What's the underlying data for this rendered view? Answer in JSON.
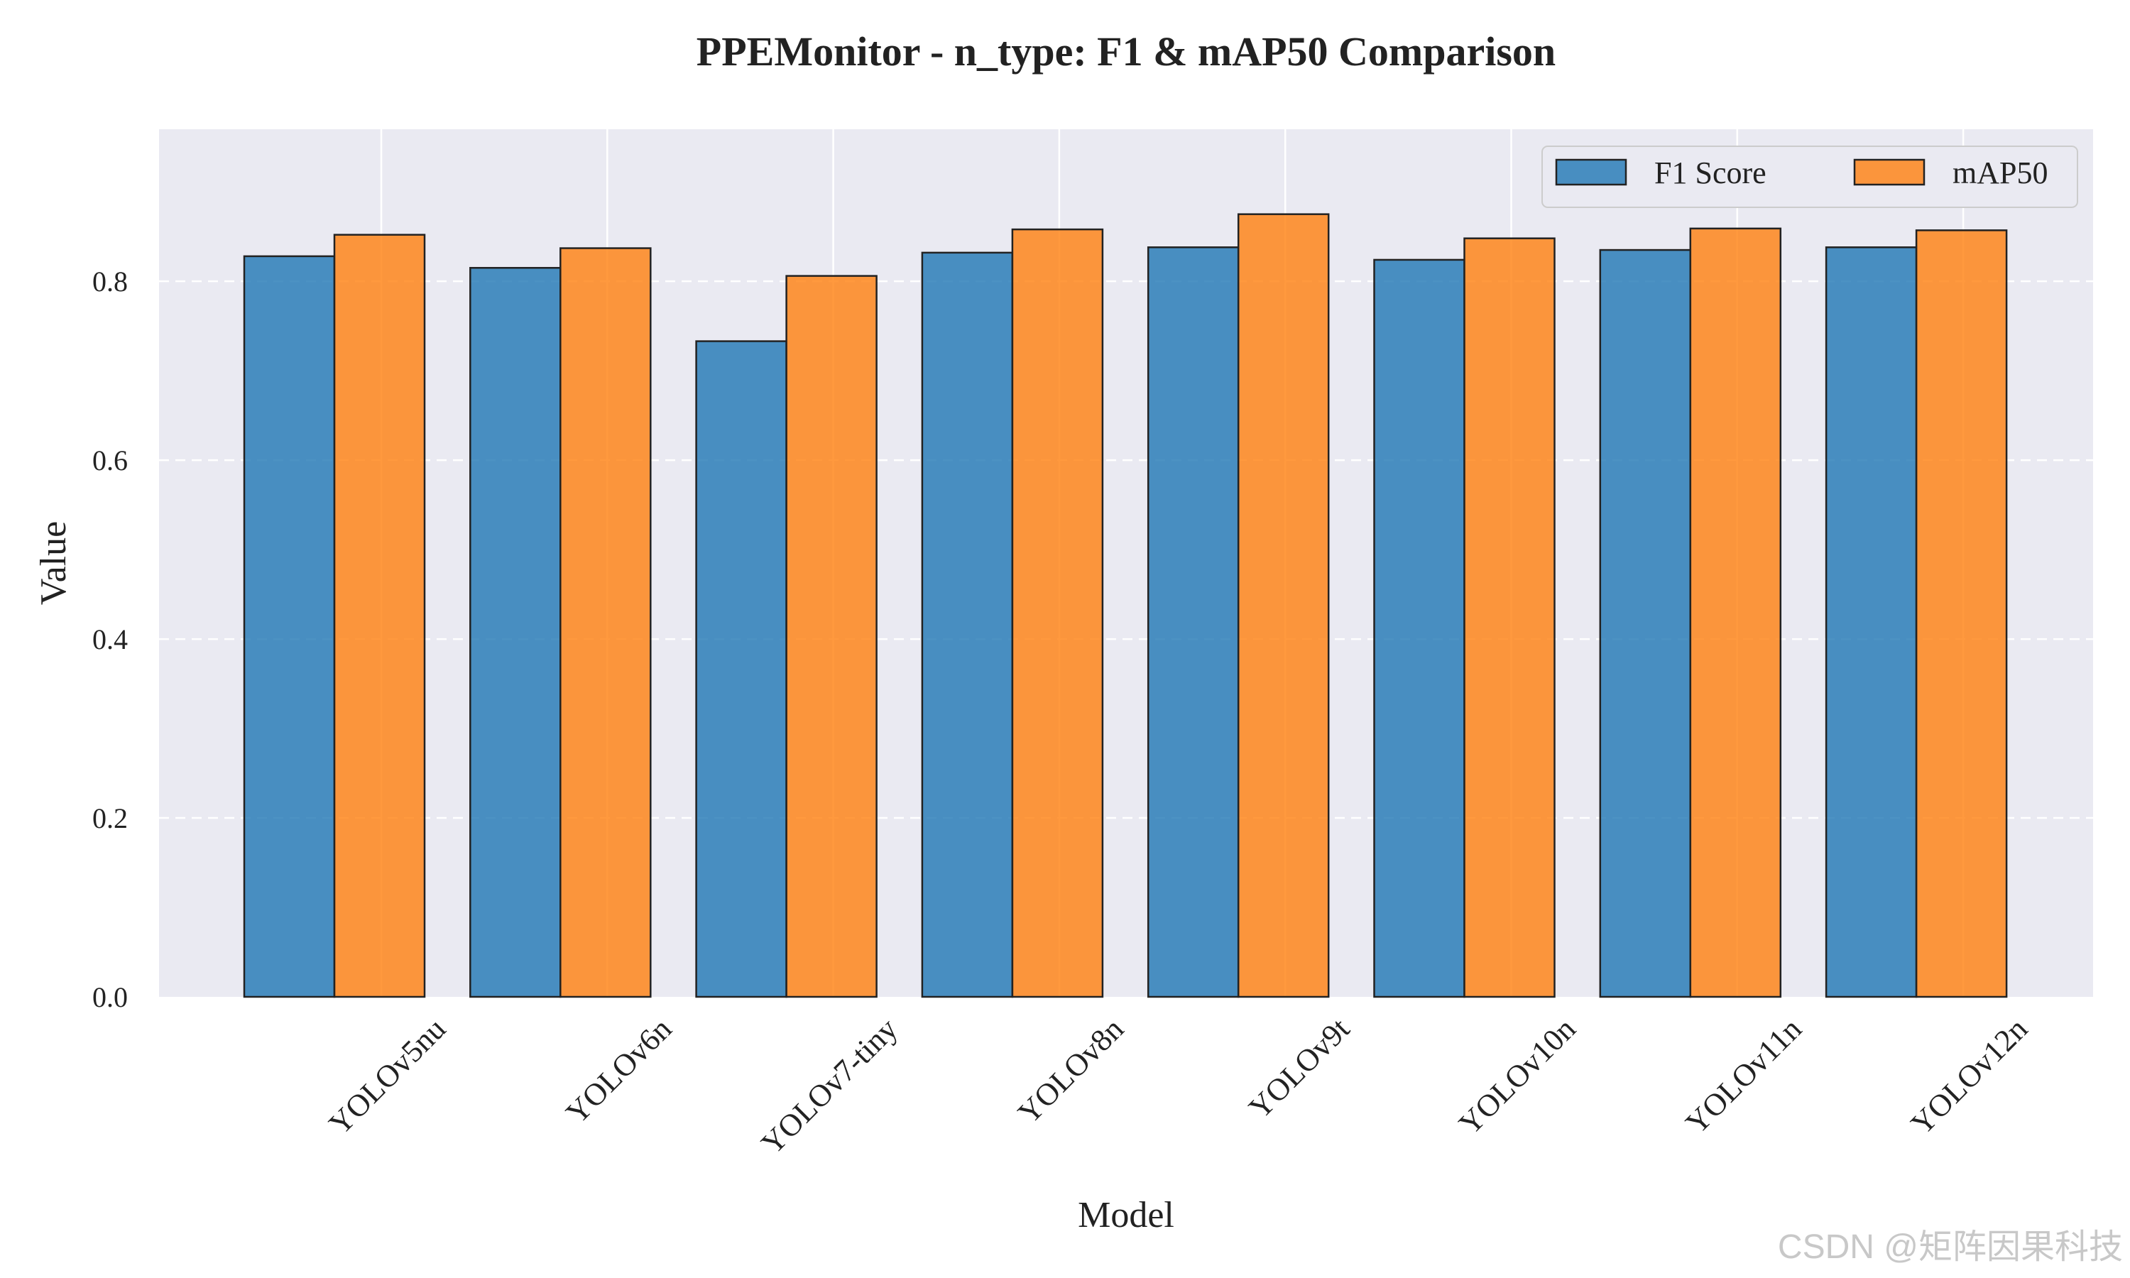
{
  "watermark": "CSDN @矩阵因果科技",
  "chart_data": {
    "type": "bar",
    "title": "PPEMonitor - n_type: F1 & mAP50 Comparison",
    "xlabel": "Model",
    "ylabel": "Value",
    "categories": [
      "YOLOv5nu",
      "YOLOv6n",
      "YOLOv7-tiny",
      "YOLOv8n",
      "YOLOv9t",
      "YOLOv10n",
      "YOLOv11n",
      "YOLOv12n"
    ],
    "series": [
      {
        "name": "F1 Score",
        "color": "#1f77b4",
        "values": [
          0.828,
          0.815,
          0.733,
          0.832,
          0.838,
          0.824,
          0.835,
          0.838
        ]
      },
      {
        "name": "mAP50",
        "color": "#ff7f0e",
        "values": [
          0.852,
          0.837,
          0.806,
          0.858,
          0.875,
          0.848,
          0.859,
          0.857
        ]
      }
    ],
    "ylim": [
      0,
      0.97
    ],
    "yticks": [
      "0.0",
      "0.2",
      "0.4",
      "0.6",
      "0.8"
    ],
    "grid": true,
    "legend_position": "top-right",
    "background": "#eaeaf2"
  }
}
